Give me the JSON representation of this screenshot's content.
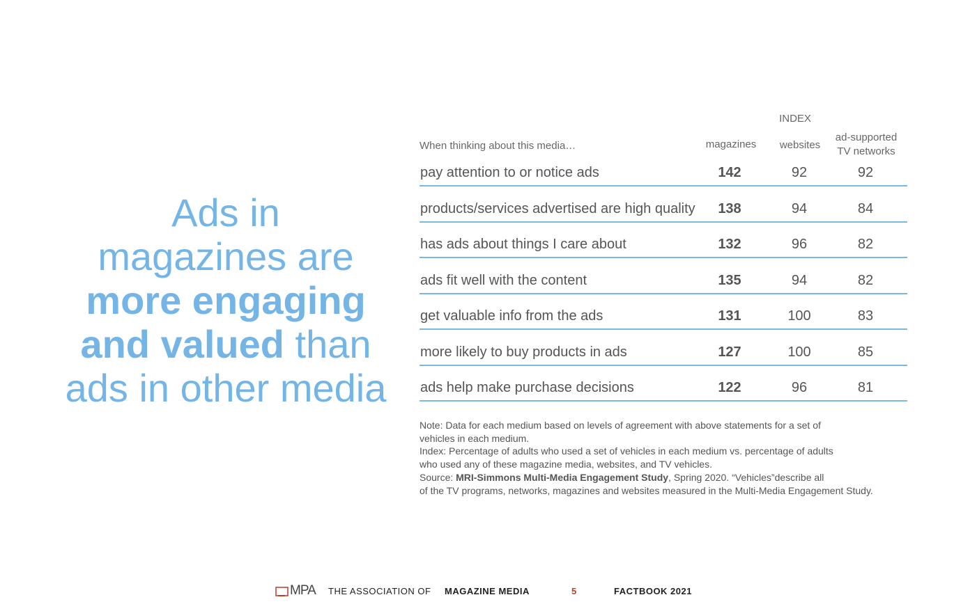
{
  "headline": {
    "lines": [
      [
        {
          "text": "Ads in",
          "bold": false
        }
      ],
      [
        {
          "text": "magazines are",
          "bold": false
        }
      ],
      [
        {
          "text": "more engaging",
          "bold": true
        }
      ],
      [
        {
          "text": "and valued",
          "bold": true
        },
        {
          "text": " than",
          "bold": false
        }
      ],
      [
        {
          "text": "ads in other media",
          "bold": false
        }
      ]
    ]
  },
  "table": {
    "group_header": "INDEX",
    "columns": [
      "When thinking about this media…",
      "magazines",
      "websites",
      "ad-supported TV networks"
    ],
    "rows": [
      [
        "pay attention to or notice ads",
        "142",
        "92",
        "92"
      ],
      [
        "products/services advertised are high quality",
        "138",
        "94",
        "84"
      ],
      [
        "has ads about things I care about",
        "132",
        "96",
        "82"
      ],
      [
        "ads fit well with the content",
        "135",
        "94",
        "82"
      ],
      [
        "get valuable info from the ads",
        "131",
        "100",
        "83"
      ],
      [
        "more likely to buy products in ads",
        "127",
        "100",
        "85"
      ],
      [
        "ads help make purchase decisions",
        "122",
        "96",
        "81"
      ]
    ]
  },
  "notes": {
    "lines": [
      [
        {
          "text": "Note: Data for each medium based on levels of agreement with above statements for a set of",
          "bold": false
        }
      ],
      [
        {
          "text": "vehicles in each medium.",
          "bold": false
        }
      ],
      [
        {
          "text": "Index: Percentage of adults who used a set of vehicles in each medium vs. percentage of adults",
          "bold": false
        }
      ],
      [
        {
          "text": "who used any of these magazine media, websites, and TV vehicles.",
          "bold": false
        }
      ],
      [
        {
          "text": "Source: ",
          "bold": false
        },
        {
          "text": "MRI-Simmons Multi-Media Engagement Study",
          "bold": true
        },
        {
          "text": ", Spring 2020. “Vehicles”describe all",
          "bold": false
        }
      ],
      [
        {
          "text": "of the TV programs, networks, magazines and websites measured in the Multi-Media Engagement Study.",
          "bold": false
        }
      ]
    ]
  },
  "footer": {
    "logo": "MPA",
    "org_prefix": "THE ASSOCIATION OF",
    "org_bold": "MAGAZINE MEDIA",
    "page": "5",
    "book": "FACTBOOK 2021"
  }
}
